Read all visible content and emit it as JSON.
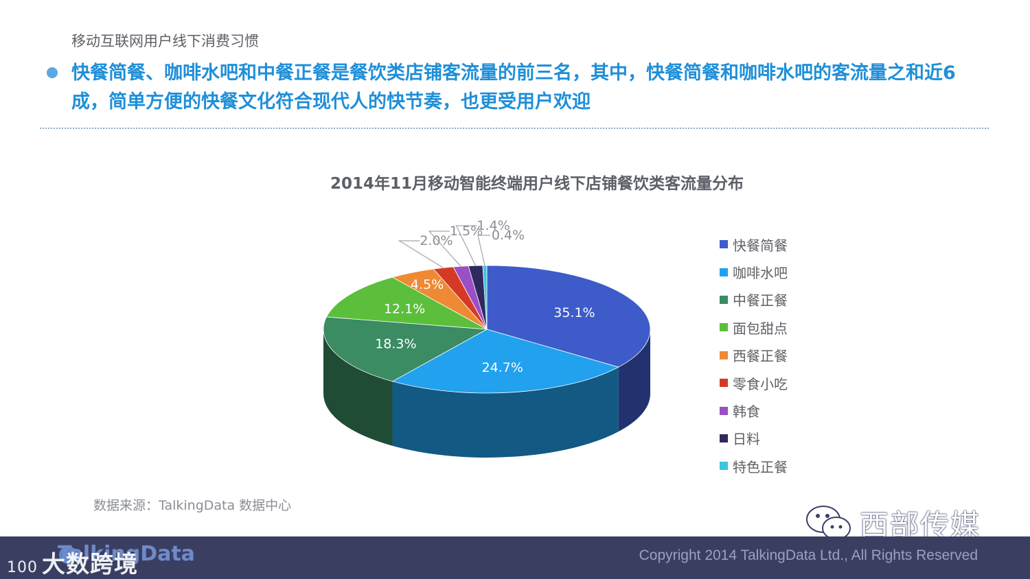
{
  "header": {
    "section_title": "移动互联网用户线下消费习惯",
    "headline": "快餐简餐、咖啡水吧和中餐正餐是餐饮类店铺客流量的前三名，其中，快餐简餐和咖啡水吧的客流量之和近6成，简单方便的快餐文化符合现代人的快节奏，也更受用户欢迎"
  },
  "chart_data": {
    "type": "pie",
    "title": "2014年11月移动智能终端用户线下店铺餐饮类客流量分布",
    "categories": [
      "快餐简餐",
      "咖啡水吧",
      "中餐正餐",
      "面包甜点",
      "西餐正餐",
      "零食小吃",
      "韩食",
      "日料",
      "特色正餐"
    ],
    "values": [
      35.1,
      24.7,
      18.3,
      12.1,
      4.5,
      2.0,
      1.5,
      1.4,
      0.4
    ],
    "labels": [
      "35.1%",
      "24.7%",
      "18.3%",
      "12.1%",
      "4.5%",
      "2.0%",
      "1.5%",
      "1.4%",
      "0.4%"
    ],
    "colors": [
      "#3d5bc9",
      "#21a1ee",
      "#3b8b63",
      "#5bbf3c",
      "#ee8a34",
      "#d53a26",
      "#9b4fc4",
      "#2f2960",
      "#3cc6d9"
    ],
    "legend_position": "right",
    "style": "3d"
  },
  "source": "数据来源：TalkingData 数据中心",
  "watermark": {
    "icon": "wechat-icon",
    "text": "西部传媒"
  },
  "footer": {
    "logo_text": "TalkingData",
    "overlay_text": "大数跨境",
    "overlay_prefix": "100",
    "copyright": "Copyright 2014 TalkingData Ltd., All Rights Reserved"
  }
}
